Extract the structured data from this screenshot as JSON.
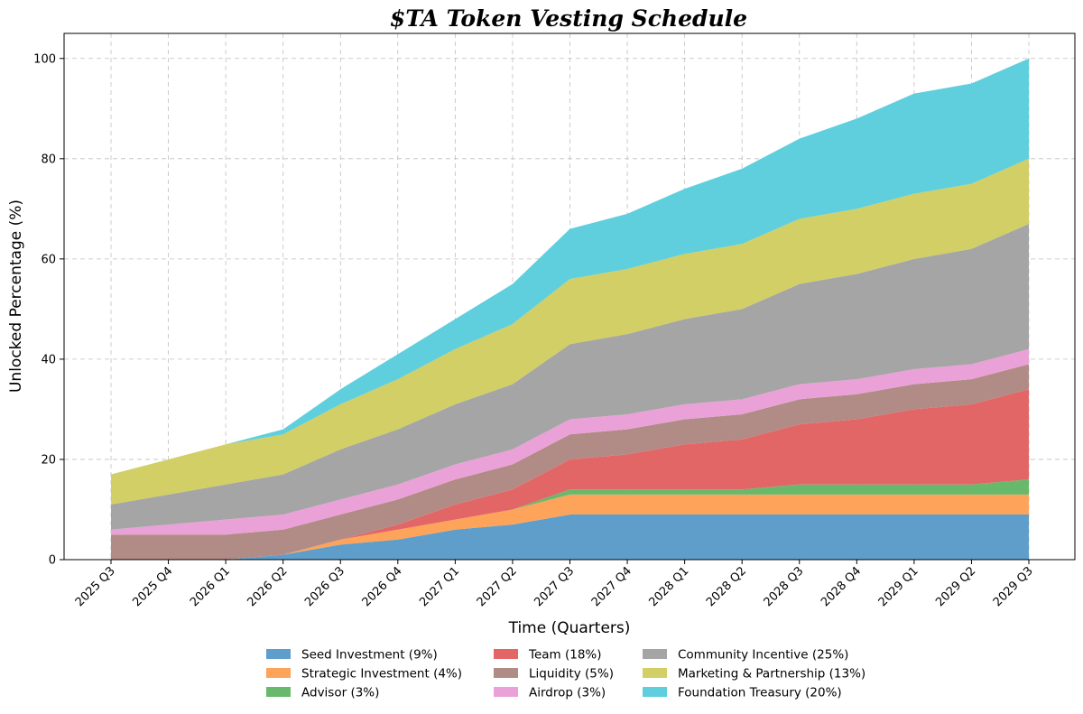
{
  "chart_data": {
    "type": "area",
    "stacked": true,
    "title": "$TA Token Vesting Schedule",
    "xlabel": "Time (Quarters)",
    "ylabel": "Unlocked Percentage (%)",
    "ylim": [
      0,
      105
    ],
    "yticks": [
      0,
      20,
      40,
      60,
      80,
      100
    ],
    "grid": true,
    "legend_position": "bottom-center",
    "categories": [
      "2025 Q3",
      "2025 Q4",
      "2026 Q1",
      "2026 Q2",
      "2026 Q3",
      "2026 Q4",
      "2027 Q1",
      "2027 Q2",
      "2027 Q3",
      "2027 Q4",
      "2028 Q1",
      "2028 Q2",
      "2028 Q3",
      "2028 Q4",
      "2029 Q1",
      "2029 Q2",
      "2029 Q3"
    ],
    "series": [
      {
        "name": "Seed Investment (9%)",
        "color": "#5f9ecb",
        "values": [
          0,
          0,
          0,
          1,
          3,
          4,
          6,
          7,
          9,
          9,
          9,
          9,
          9,
          9,
          9,
          9,
          9
        ]
      },
      {
        "name": "Strategic Investment (4%)",
        "color": "#fda45a",
        "values": [
          0,
          0,
          0,
          0,
          1,
          2,
          2,
          3,
          4,
          4,
          4,
          4,
          4,
          4,
          4,
          4,
          4
        ]
      },
      {
        "name": "Advisor (3%)",
        "color": "#69b96c",
        "values": [
          0,
          0,
          0,
          0,
          0,
          0,
          0,
          0,
          1,
          1,
          1,
          1,
          2,
          2,
          2,
          2,
          3
        ]
      },
      {
        "name": "Team (18%)",
        "color": "#e36667",
        "values": [
          0,
          0,
          0,
          0,
          0,
          1,
          3,
          4,
          6,
          7,
          9,
          10,
          12,
          13,
          15,
          16,
          18
        ]
      },
      {
        "name": "Liquidity (5%)",
        "color": "#b18b85",
        "values": [
          5,
          5,
          5,
          5,
          5,
          5,
          5,
          5,
          5,
          5,
          5,
          5,
          5,
          5,
          5,
          5,
          5
        ]
      },
      {
        "name": "Airdrop (3%)",
        "color": "#eaa1d7",
        "values": [
          1,
          2,
          3,
          3,
          3,
          3,
          3,
          3,
          3,
          3,
          3,
          3,
          3,
          3,
          3,
          3,
          3
        ]
      },
      {
        "name": "Community Incentive (25%)",
        "color": "#a5a5a5",
        "values": [
          5,
          6,
          7,
          8,
          10,
          11,
          12,
          13,
          15,
          16,
          17,
          18,
          20,
          21,
          22,
          23,
          25
        ]
      },
      {
        "name": "Marketing & Partnership (13%)",
        "color": "#d1cf66",
        "values": [
          6,
          7,
          8,
          8,
          9,
          10,
          11,
          12,
          13,
          13,
          13,
          13,
          13,
          13,
          13,
          13,
          13
        ]
      },
      {
        "name": "Foundation Treasury (20%)",
        "color": "#5fcfdd",
        "values": [
          0,
          0,
          0,
          1,
          3,
          5,
          6,
          8,
          10,
          11,
          13,
          15,
          16,
          18,
          20,
          20,
          20
        ]
      }
    ]
  }
}
